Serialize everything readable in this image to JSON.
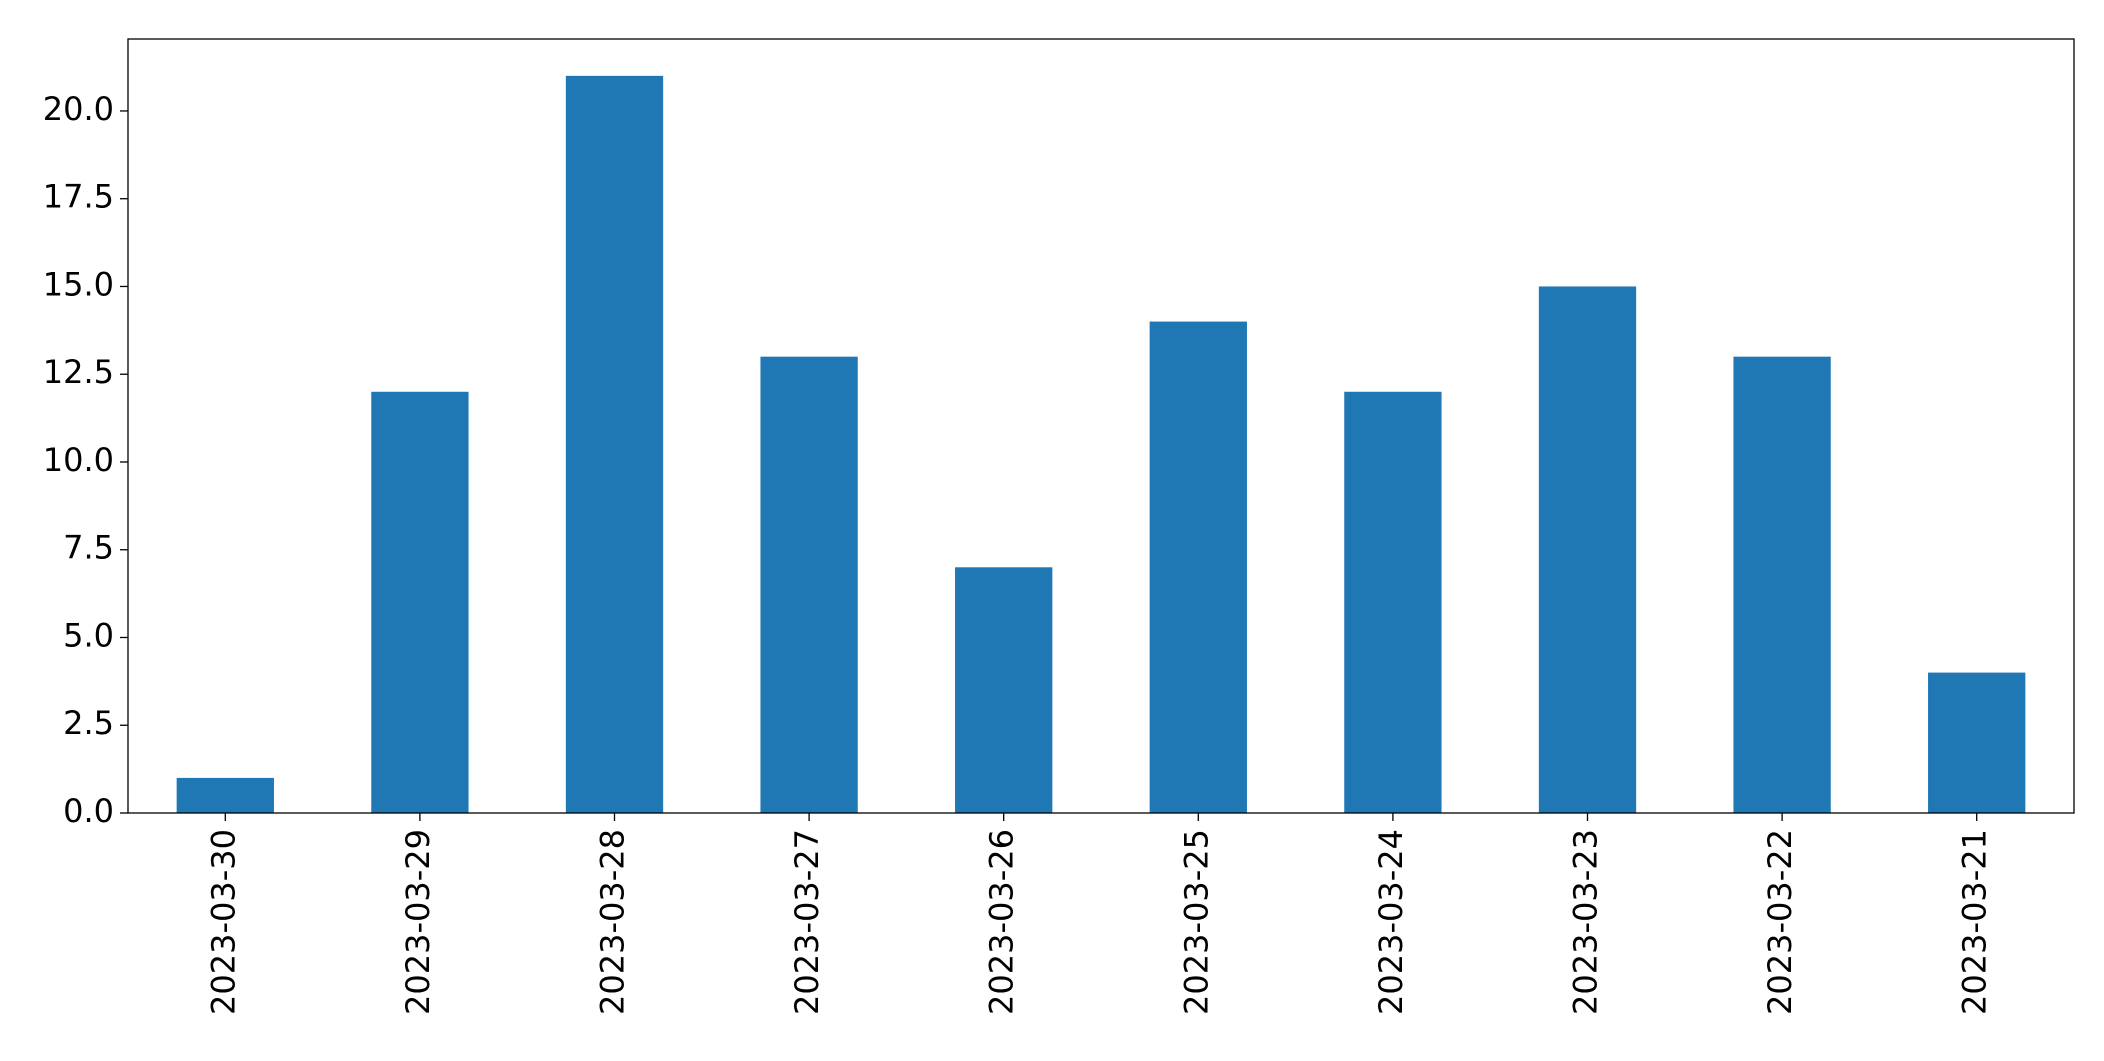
{
  "chart_data": {
    "type": "bar",
    "categories": [
      "2023-03-30",
      "2023-03-29",
      "2023-03-28",
      "2023-03-27",
      "2023-03-26",
      "2023-03-25",
      "2023-03-24",
      "2023-03-23",
      "2023-03-22",
      "2023-03-21"
    ],
    "values": [
      1,
      12,
      21,
      13,
      7,
      14,
      12,
      15,
      13,
      4
    ],
    "color": "#1f77b4",
    "ylim": [
      0,
      22.05
    ],
    "yticks": [
      {
        "value": 0,
        "label": "0.0"
      },
      2.5,
      {
        "value": 5,
        "label": "5.0"
      },
      7.5,
      {
        "value": 10,
        "label": "10.0"
      },
      12.5,
      {
        "value": 15,
        "label": "15.0"
      },
      17.5,
      {
        "value": 20,
        "label": "20.0"
      }
    ],
    "grid": false
  }
}
